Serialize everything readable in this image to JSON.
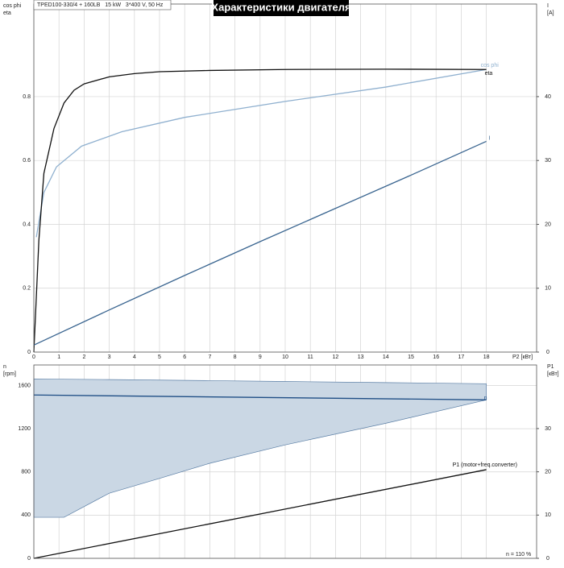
{
  "header": "TPED100-330/4 + 160LB   15 kW   3*400 V, 50 Hz",
  "chart_data": [
    {
      "type": "line",
      "title": "Характеристики двигателя",
      "xlabel": "P2 [кВт]",
      "ylabel": [
        "cos phi",
        "eta"
      ],
      "y2label": [
        "I",
        "[A]"
      ],
      "xlim": [
        0,
        20
      ],
      "ylim": [
        0,
        1.09
      ],
      "y2lim": [
        0,
        54.5
      ],
      "xticks": [
        0,
        1,
        2,
        3,
        4,
        5,
        6,
        7,
        8,
        9,
        10,
        11,
        12,
        13,
        14,
        15,
        16,
        17,
        18
      ],
      "yticks": [
        0,
        0.2,
        0.4,
        0.6,
        0.8
      ],
      "y2ticks": [
        0,
        10,
        20,
        30,
        40
      ],
      "grid": true,
      "series": [
        {
          "name": "cos phi",
          "color": "#8fb0cf",
          "x": [
            0.1,
            0.4,
            0.9,
            1.9,
            3.5,
            6,
            10,
            14,
            18
          ],
          "values": [
            0.36,
            0.5,
            0.58,
            0.645,
            0.69,
            0.735,
            0.785,
            0.83,
            0.885
          ]
        },
        {
          "name": "eta",
          "color": "#111111",
          "x": [
            0,
            0.2,
            0.4,
            0.8,
            1.2,
            1.6,
            2,
            3,
            4,
            5,
            7,
            10,
            14,
            18
          ],
          "values": [
            0,
            0.35,
            0.56,
            0.7,
            0.78,
            0.82,
            0.84,
            0.862,
            0.872,
            0.878,
            0.882,
            0.885,
            0.886,
            0.885
          ]
        },
        {
          "name": "I",
          "color": "#3a6590",
          "axis": "y2",
          "x": [
            0,
            3,
            6,
            9,
            12,
            15,
            18
          ],
          "values": [
            1.1,
            6.6,
            12,
            17.3,
            22.5,
            27.7,
            33
          ]
        }
      ]
    },
    {
      "type": "line",
      "ylabel": [
        "n",
        "[rpm]"
      ],
      "y2label": [
        "P1",
        "[кВт]"
      ],
      "note": "n = 110 %",
      "xlim": [
        0,
        20
      ],
      "ylim": [
        0,
        1790
      ],
      "y2lim": [
        0,
        44.7
      ],
      "xticks": [
        0,
        1,
        2,
        3,
        4,
        5,
        6,
        7,
        8,
        9,
        10,
        11,
        12,
        13,
        14,
        15,
        16,
        17,
        18
      ],
      "yticks": [
        0,
        400,
        800,
        1200,
        1600
      ],
      "y2ticks": [
        0,
        10,
        20,
        30
      ],
      "grid": true,
      "band": {
        "color": "#cad7e4",
        "x": [
          0,
          1.2,
          3,
          5,
          7,
          10,
          14,
          18
        ],
        "upper": [
          1661,
          1658,
          1655,
          1650,
          1645,
          1637,
          1627,
          1616
        ],
        "lower": [
          380,
          380,
          603,
          740,
          880,
          1050,
          1250,
          1467
        ]
      },
      "series": [
        {
          "name": "n",
          "color": "#1f4e85",
          "x": [
            0,
            18
          ],
          "values": [
            1512,
            1467
          ]
        },
        {
          "name": "P1 (motor+freq.converter)",
          "color": "#111111",
          "axis": "y2",
          "x": [
            0,
            18
          ],
          "values": [
            0,
            20.5
          ]
        }
      ]
    }
  ]
}
